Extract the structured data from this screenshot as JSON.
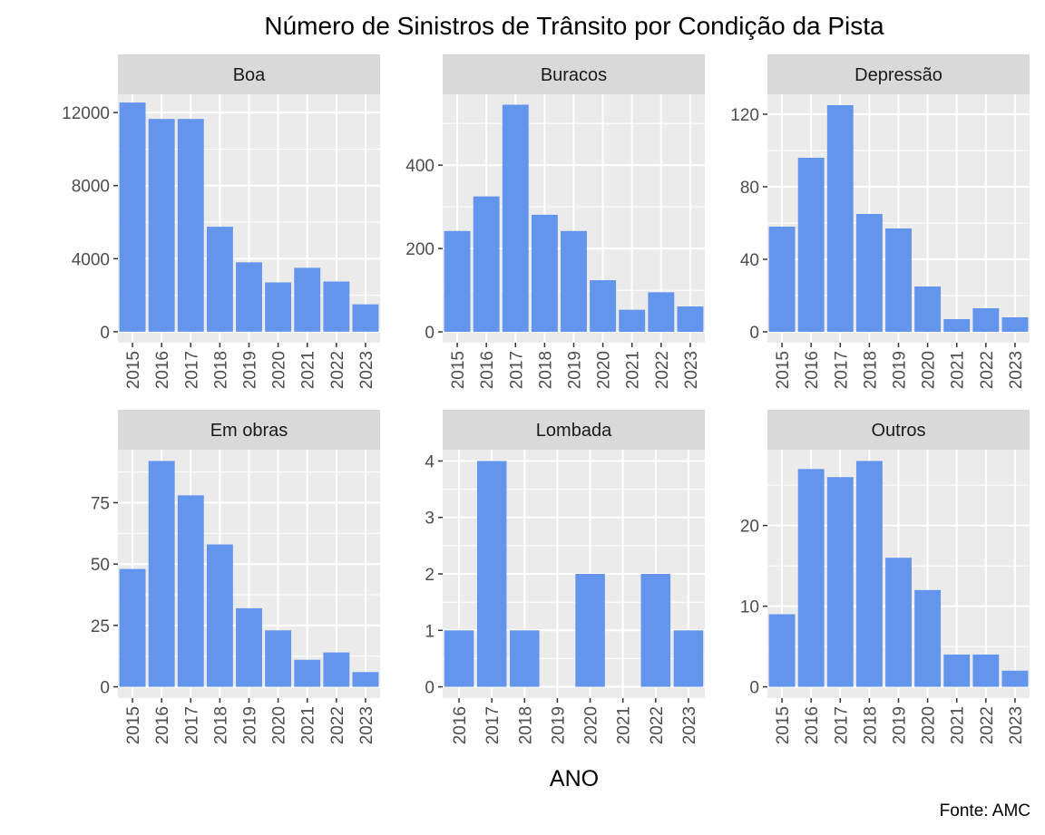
{
  "chart_data": {
    "type": "bar",
    "title": "Número de Sinistros de Trânsito por Condição da Pista",
    "xlabel": "ANO",
    "ylabel": "",
    "caption": "Fonte: AMC",
    "bar_color": "#6495ED",
    "panel_background": "#EBEBEB",
    "strip_background": "#D9D9D9",
    "grid": true,
    "legend": "none",
    "facets": [
      {
        "name": "Boa",
        "categories": [
          "2015",
          "2016",
          "2017",
          "2018",
          "2019",
          "2020",
          "2021",
          "2022",
          "2023"
        ],
        "values": [
          12550,
          11650,
          11650,
          5750,
          3800,
          2700,
          3500,
          2750,
          1500
        ],
        "ylim": [
          -600,
          13000
        ],
        "yticks": [
          0,
          4000,
          8000,
          12000
        ]
      },
      {
        "name": "Buracos",
        "categories": [
          "2015",
          "2016",
          "2017",
          "2018",
          "2019",
          "2020",
          "2021",
          "2022",
          "2023"
        ],
        "values": [
          242,
          325,
          545,
          281,
          242,
          124,
          53,
          95,
          61
        ],
        "ylim": [
          -26,
          570
        ],
        "yticks": [
          0,
          200,
          400
        ]
      },
      {
        "name": "Depressão",
        "categories": [
          "2015",
          "2016",
          "2017",
          "2018",
          "2019",
          "2020",
          "2021",
          "2022",
          "2023"
        ],
        "values": [
          58,
          96,
          125,
          65,
          57,
          25,
          7,
          13,
          8
        ],
        "ylim": [
          -6,
          131
        ],
        "yticks": [
          0,
          40,
          80,
          120
        ]
      },
      {
        "name": "Em obras",
        "categories": [
          "2015",
          "2016",
          "2017",
          "2018",
          "2019",
          "2020",
          "2021",
          "2022",
          "2023"
        ],
        "values": [
          48,
          92,
          78,
          58,
          32,
          23,
          11,
          14,
          6
        ],
        "ylim": [
          -4.6,
          96.6
        ],
        "yticks": [
          0,
          25,
          50,
          75
        ]
      },
      {
        "name": "Lombada",
        "categories": [
          "2016",
          "2017",
          "2018",
          "2019",
          "2020",
          "2021",
          "2022",
          "2023"
        ],
        "values": [
          1,
          4,
          1,
          0,
          2,
          0,
          2,
          1
        ],
        "ylim": [
          -0.2,
          4.2
        ],
        "yticks": [
          0,
          1,
          2,
          3,
          4
        ]
      },
      {
        "name": "Outros",
        "categories": [
          "2015",
          "2016",
          "2017",
          "2018",
          "2019",
          "2020",
          "2021",
          "2022",
          "2023"
        ],
        "values": [
          9,
          27,
          26,
          28,
          16,
          12,
          4,
          4,
          2
        ],
        "ylim": [
          -1.4,
          29.4
        ],
        "yticks": [
          0,
          10,
          20
        ]
      }
    ]
  }
}
